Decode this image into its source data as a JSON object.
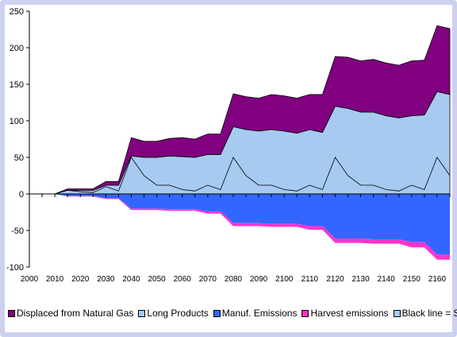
{
  "chart_data": {
    "type": "area",
    "title": "",
    "xlabel": "",
    "ylabel": "",
    "x": [
      2000,
      2005,
      2010,
      2015,
      2020,
      2025,
      2030,
      2035,
      2040,
      2045,
      2050,
      2055,
      2060,
      2065,
      2070,
      2075,
      2080,
      2085,
      2090,
      2095,
      2100,
      2105,
      2110,
      2115,
      2120,
      2125,
      2130,
      2135,
      2140,
      2145,
      2150,
      2155,
      2160,
      2165
    ],
    "xlim": [
      2000,
      2165
    ],
    "ylim": [
      -100,
      250
    ],
    "x_ticks": [
      "2000",
      "2010",
      "2020",
      "2030",
      "2040",
      "2050",
      "2060",
      "2070",
      "2080",
      "2090",
      "2100",
      "2110",
      "2120",
      "2130",
      "2140",
      "2150",
      "2160"
    ],
    "y_ticks": [
      "250",
      "200",
      "150",
      "100",
      "50",
      "0",
      "-50",
      "-100"
    ],
    "grid": false,
    "legend_position": "bottom",
    "series": [
      {
        "name": "Displaced from Natural Gas",
        "color": "#800080",
        "stack": "positive",
        "values": [
          0,
          0,
          0,
          2,
          2,
          2,
          5,
          5,
          25,
          22,
          22,
          24,
          26,
          25,
          28,
          28,
          45,
          45,
          45,
          48,
          48,
          48,
          48,
          52,
          68,
          70,
          70,
          72,
          72,
          72,
          75,
          75,
          90,
          90
        ]
      },
      {
        "name": "Long Products",
        "color": "#a6caf0",
        "stack": "positive",
        "values": [
          0,
          0,
          0,
          5,
          5,
          5,
          12,
          12,
          52,
          50,
          50,
          52,
          51,
          50,
          54,
          54,
          92,
          88,
          86,
          88,
          86,
          83,
          88,
          84,
          120,
          117,
          112,
          112,
          107,
          104,
          107,
          108,
          140,
          136
        ]
      },
      {
        "name": "Manuf. Emissions",
        "color": "#3366ff",
        "stack": "negative",
        "values": [
          0,
          0,
          0,
          -3,
          -3,
          -3,
          -6,
          -6,
          -20,
          -20,
          -20,
          -21,
          -21,
          -21,
          -24,
          -24,
          -40,
          -40,
          -40,
          -41,
          -41,
          -41,
          -44,
          -44,
          -61,
          -61,
          -61,
          -62,
          -62,
          -62,
          -66,
          -66,
          -83,
          -83
        ]
      },
      {
        "name": "Harvest emissions",
        "color": "#ff33cc",
        "stack": "negative",
        "values": [
          0,
          0,
          0,
          -0.5,
          -0.5,
          -0.5,
          -1,
          -1,
          -2,
          -2,
          -2,
          -2,
          -2,
          -2,
          -3,
          -3,
          -4,
          -4,
          -4,
          -4,
          -4,
          -4,
          -5,
          -5,
          -6,
          -6,
          -6,
          -6,
          -6,
          -6,
          -7,
          -7,
          -7,
          -7
        ]
      },
      {
        "name": "Black line = STP",
        "color": "#a6caf0",
        "stack": "none",
        "line_color": "#000000",
        "values": [
          0,
          0,
          0,
          5,
          3,
          2,
          10,
          4,
          50,
          25,
          12,
          12,
          6,
          4,
          12,
          6,
          50,
          25,
          12,
          12,
          6,
          4,
          12,
          6,
          50,
          25,
          12,
          12,
          6,
          4,
          12,
          6,
          50,
          25
        ]
      }
    ]
  }
}
